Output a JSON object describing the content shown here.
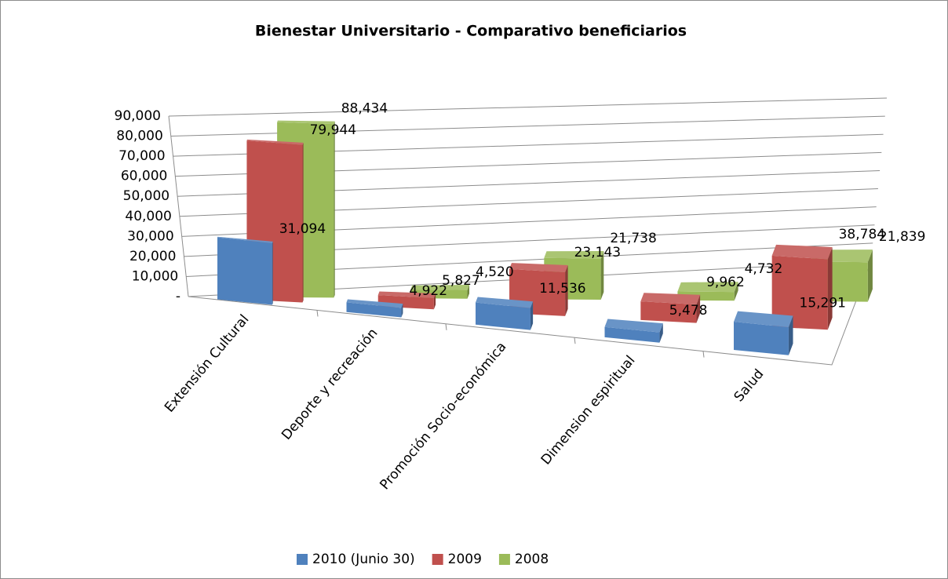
{
  "chart_data": {
    "type": "bar3d",
    "title": "Bienestar Universitario - Comparativo beneficiarios",
    "categories": [
      "Extensión Cultural",
      "Deporte y recreación",
      "Promoción Socio-económica",
      "Dimension espiritual",
      "Salud"
    ],
    "series": [
      {
        "name": "2010 (Junio 30)",
        "color": "#4f81bd",
        "values": [
          31094,
          4922,
          11536,
          5478,
          15291
        ],
        "value_labels": [
          "31,094",
          "4,922",
          "11,536",
          "5,478",
          "15,291"
        ]
      },
      {
        "name": "2009",
        "color": "#c0504d",
        "values": [
          79944,
          5827,
          23143,
          9962,
          38784
        ],
        "value_labels": [
          "79,944",
          "5,827",
          "23,143",
          "9,962",
          "38,784"
        ]
      },
      {
        "name": "2008",
        "color": "#9bbb59",
        "values": [
          88434,
          4520,
          21738,
          4732,
          21839
        ],
        "value_labels": [
          "88,434",
          "4,520",
          "21,738",
          "4,732",
          "21,839"
        ]
      }
    ],
    "ylim": [
      0,
      90000
    ],
    "yticks": [
      {
        "value": 0,
        "label": "-"
      },
      {
        "value": 10000,
        "label": "10,000"
      },
      {
        "value": 20000,
        "label": "20,000"
      },
      {
        "value": 30000,
        "label": "30,000"
      },
      {
        "value": 40000,
        "label": "40,000"
      },
      {
        "value": 50000,
        "label": "50,000"
      },
      {
        "value": 60000,
        "label": "60,000"
      },
      {
        "value": 70000,
        "label": "70,000"
      },
      {
        "value": 80000,
        "label": "80,000"
      },
      {
        "value": 90000,
        "label": "90,000"
      }
    ],
    "grid": true,
    "legend": "bottom"
  }
}
